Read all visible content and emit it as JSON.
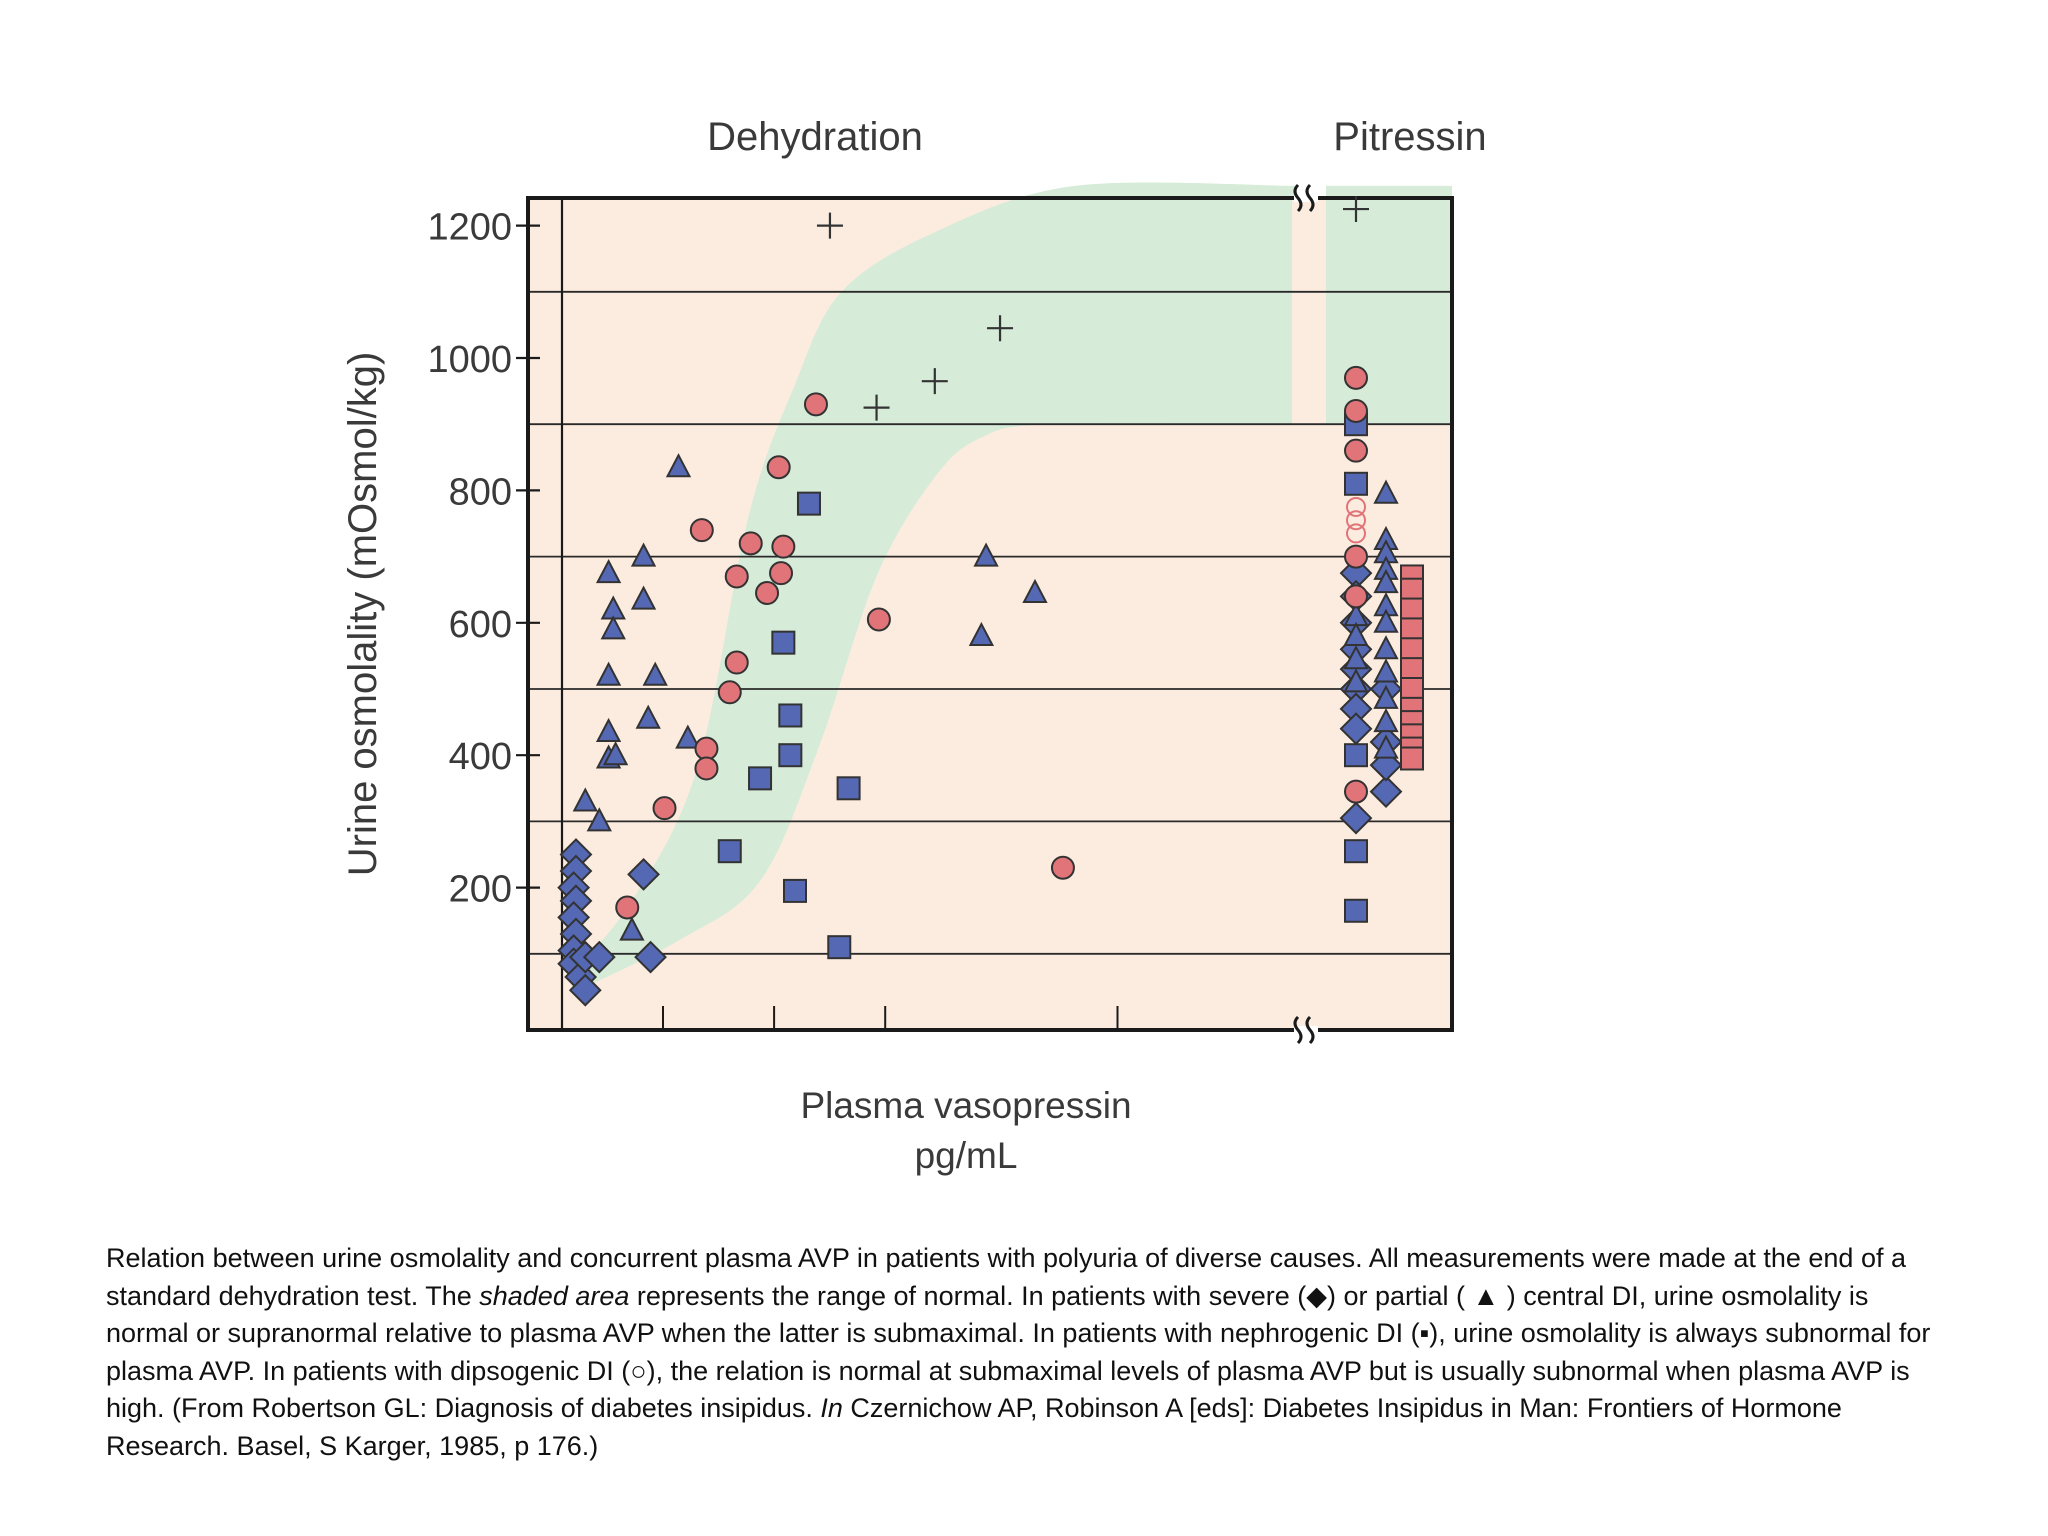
{
  "chart_data": {
    "type": "scatter",
    "section_titles": [
      "Dehydration",
      "Pitressin"
    ],
    "xlabel_line1": "Plasma vasopressin",
    "xlabel_line2": "pg/mL",
    "ylabel": "Urine osmolality (mOsmol/kg)",
    "ylim": [
      0,
      1280
    ],
    "yticks": [
      200,
      400,
      600,
      800,
      1000,
      1200
    ],
    "gridlines": [
      100,
      300,
      500,
      700,
      900,
      1100
    ],
    "x_scale": "relative plasma vasopressin (unlabeled; Pitressin column shown separately)",
    "legend": "none (symbols explained in caption)",
    "colors": {
      "background": "#fcecdf",
      "normal_range": "#d6ebd8",
      "blue_marker": "#5468b4",
      "red_marker": "#e07478",
      "marker_edge": "#333333",
      "axis": "#1a1a1a"
    },
    "normal_range_region": {
      "description": "shaded area representing the range of normal",
      "lower_boundary": [
        [
          0.04,
          40
        ],
        [
          0.5,
          120
        ],
        [
          0.85,
          210
        ],
        [
          1.1,
          410
        ],
        [
          1.35,
          670
        ],
        [
          1.6,
          820
        ],
        [
          1.8,
          880
        ],
        [
          2.1,
          900
        ],
        [
          3.15,
          900
        ]
      ],
      "upper_boundary": [
        [
          0.04,
          70
        ],
        [
          0.3,
          180
        ],
        [
          0.58,
          380
        ],
        [
          0.8,
          760
        ],
        [
          1.0,
          960
        ],
        [
          1.2,
          1100
        ],
        [
          1.6,
          1190
        ],
        [
          2.2,
          1260
        ],
        [
          3.15,
          1260
        ]
      ],
      "pitressin_band": [
        900,
        1260
      ]
    },
    "series": [
      {
        "marker": "diamond",
        "color": "#5468b4",
        "points": [
          [
            0.06,
            250
          ],
          [
            0.06,
            225
          ],
          [
            0.05,
            200
          ],
          [
            0.06,
            180
          ],
          [
            0.05,
            155
          ],
          [
            0.06,
            130
          ],
          [
            0.05,
            105
          ],
          [
            0.05,
            85
          ],
          [
            0.08,
            65
          ],
          [
            0.1,
            45
          ],
          [
            0.1,
            95
          ],
          [
            0.16,
            95
          ],
          [
            0.35,
            220
          ],
          [
            0.38,
            95
          ],
          [
            "P",
            675
          ],
          [
            "P",
            640
          ],
          [
            "P",
            600
          ],
          [
            "P",
            560
          ],
          [
            "P",
            530
          ],
          [
            "P",
            500
          ],
          [
            "P",
            470
          ],
          [
            "P",
            440
          ],
          [
            "P",
            305
          ],
          [
            "P2",
            345
          ],
          [
            "P2",
            385
          ],
          [
            "P2",
            420
          ],
          [
            "P2",
            500
          ]
        ]
      },
      {
        "marker": "triangle",
        "color": "#5468b4",
        "points": [
          [
            0.1,
            330
          ],
          [
            0.16,
            300
          ],
          [
            0.2,
            675
          ],
          [
            0.22,
            620
          ],
          [
            0.22,
            590
          ],
          [
            0.2,
            520
          ],
          [
            0.2,
            435
          ],
          [
            0.2,
            395
          ],
          [
            0.23,
            400
          ],
          [
            0.3,
            135
          ],
          [
            0.35,
            700
          ],
          [
            0.35,
            635
          ],
          [
            0.37,
            455
          ],
          [
            0.4,
            520
          ],
          [
            0.5,
            835
          ],
          [
            0.54,
            425
          ],
          [
            1.82,
            700
          ],
          [
            1.8,
            580
          ],
          [
            2.03,
            645
          ],
          [
            "P",
            610
          ],
          [
            "P",
            580
          ],
          [
            "P",
            545
          ],
          [
            "P",
            510
          ],
          [
            "P2",
            795
          ],
          [
            "P2",
            725
          ],
          [
            "P2",
            705
          ],
          [
            "P2",
            680
          ],
          [
            "P2",
            660
          ],
          [
            "P2",
            625
          ],
          [
            "P2",
            600
          ],
          [
            "P2",
            560
          ],
          [
            "P2",
            525
          ],
          [
            "P2",
            485
          ],
          [
            "P2",
            450
          ],
          [
            "P2",
            410
          ]
        ]
      },
      {
        "marker": "square",
        "color": "#5468b4",
        "points": [
          [
            1.06,
            780
          ],
          [
            0.95,
            570
          ],
          [
            0.98,
            460
          ],
          [
            0.98,
            400
          ],
          [
            0.85,
            365
          ],
          [
            1.23,
            350
          ],
          [
            0.72,
            255
          ],
          [
            1.0,
            195
          ],
          [
            1.19,
            110
          ],
          [
            "P",
            900
          ],
          [
            "P",
            810
          ],
          [
            "P",
            400
          ],
          [
            "P",
            255
          ],
          [
            "P",
            165
          ]
        ]
      },
      {
        "marker": "circle",
        "color": "#e07478",
        "points": [
          [
            0.28,
            170
          ],
          [
            0.44,
            320
          ],
          [
            0.6,
            740
          ],
          [
            0.62,
            410
          ],
          [
            0.62,
            380
          ],
          [
            0.75,
            670
          ],
          [
            0.75,
            540
          ],
          [
            0.72,
            495
          ],
          [
            0.81,
            720
          ],
          [
            0.88,
            645
          ],
          [
            0.93,
            835
          ],
          [
            0.95,
            715
          ],
          [
            0.94,
            675
          ],
          [
            1.09,
            930
          ],
          [
            1.36,
            605
          ],
          [
            2.15,
            230
          ],
          [
            "P",
            970
          ],
          [
            "P",
            920
          ],
          [
            "P",
            860
          ],
          [
            "P",
            700
          ],
          [
            "P",
            640
          ],
          [
            "P",
            345
          ]
        ]
      },
      {
        "marker": "open-circle",
        "color": "#e07478",
        "points": [
          [
            "P",
            775
          ],
          [
            "P",
            755
          ],
          [
            "P",
            735
          ]
        ]
      },
      {
        "marker": "square",
        "color": "#e07478",
        "points": [
          [
            "P3",
            670
          ],
          [
            "P3",
            650
          ],
          [
            "P3",
            620
          ],
          [
            "P3",
            590
          ],
          [
            "P3",
            560
          ],
          [
            "P3",
            530
          ],
          [
            "P3",
            500
          ],
          [
            "P3",
            470
          ],
          [
            "P3",
            450
          ],
          [
            "P3",
            430
          ],
          [
            "P3",
            410
          ],
          [
            "P3",
            395
          ]
        ]
      },
      {
        "marker": "plus",
        "color": "#333333",
        "points": [
          [
            1.15,
            1200
          ],
          [
            1.88,
            1045
          ],
          [
            1.35,
            925
          ],
          [
            1.6,
            965
          ],
          [
            "P",
            1225
          ]
        ]
      }
    ]
  },
  "caption": {
    "part1": "Relation between urine osmolality and concurrent plasma AVP in patients with polyuria of diverse causes. All measurements were made at the end of a standard dehydration test. The ",
    "shaded_area_italic": "shaded area",
    "part2": " represents the range of normal. In patients with severe (◆) or partial ( ▲ ) central DI, urine osmolality is normal or supranormal relative to plasma AVP when the latter is submaximal. In patients with nephrogenic DI (▪), urine osmolality is always subnormal for plasma AVP. In patients with dipsogenic DI (○), the relation is normal at submaximal levels of plasma AVP but is usually subnormal when plasma AVP is high.  (From Robertson GL: Diagnosis of diabetes insipidus. ",
    "in_italic": "In",
    "part3": " Czernichow AP, Robinson A [eds]: Diabetes Insipidus in Man: Frontiers of Hormone Research. Basel, S Karger, 1985, p 176.)"
  }
}
